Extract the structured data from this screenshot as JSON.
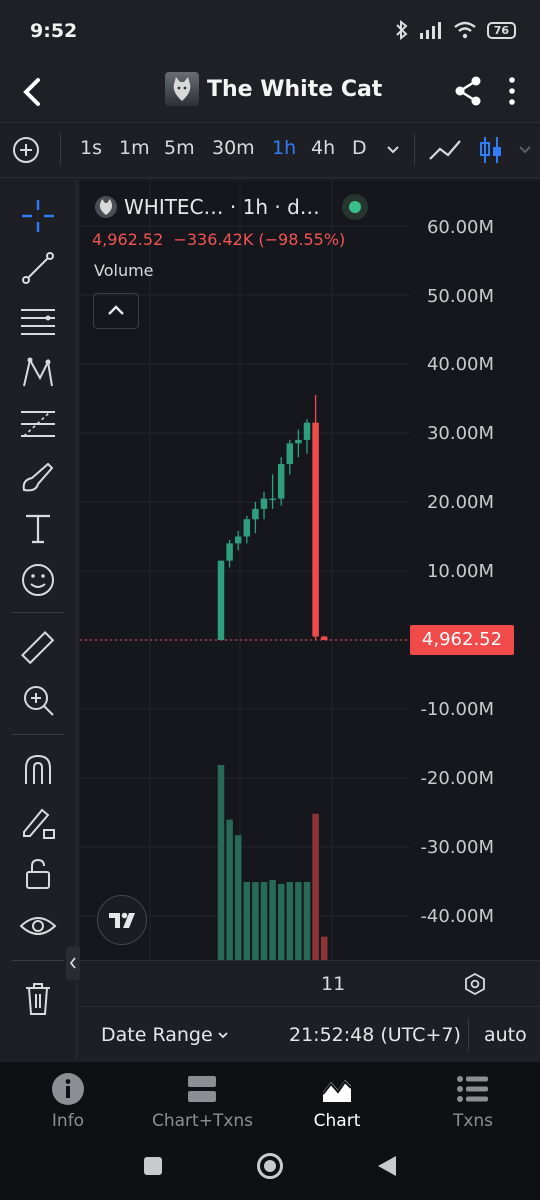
{
  "status_bar": {
    "time": "9:52",
    "battery": "76"
  },
  "header": {
    "title": "The White Cat"
  },
  "intervals": [
    "1s",
    "1m",
    "5m",
    "30m",
    "1h",
    "4h",
    "D"
  ],
  "active_interval": "1h",
  "legend": {
    "symbol": "WHITEC… · 1h · d…",
    "price": "4,962.52",
    "change": "−336.42K (−98.55%)",
    "volume_label": "Volume"
  },
  "price_axis": {
    "labels": [
      "60.00M",
      "50.00M",
      "40.00M",
      "30.00M",
      "20.00M",
      "10.00M",
      "-10.00M",
      "-20.00M",
      "-30.00M",
      "-40.00M"
    ],
    "current_price_tag": "4,962.52"
  },
  "time_axis": {
    "label": "11"
  },
  "bottom_bar": {
    "date_range": "Date Range",
    "clock": "21:52:48 (UTC+7)",
    "scale": "auto"
  },
  "tabs": [
    {
      "label": "Info",
      "icon": "info-icon"
    },
    {
      "label": "Chart+Txns",
      "icon": "split-view-icon"
    },
    {
      "label": "Chart",
      "icon": "area-chart-icon",
      "active": true
    },
    {
      "label": "Txns",
      "icon": "list-icon"
    }
  ],
  "colors": {
    "up": "#2f9e7d",
    "down": "#ef4b4c",
    "accent": "#2f7cf6",
    "background": "#16171c"
  },
  "chart_data": {
    "type": "candlestick",
    "interval": "1h",
    "ylim": [
      -45000000,
      62000000
    ],
    "candles": [
      {
        "o": 0,
        "h": 11500000,
        "l": 0,
        "c": 11500000
      },
      {
        "o": 11500000,
        "h": 14500000,
        "l": 10500000,
        "c": 14000000
      },
      {
        "o": 14000000,
        "h": 15800000,
        "l": 13000000,
        "c": 15000000
      },
      {
        "o": 15000000,
        "h": 18000000,
        "l": 14000000,
        "c": 17500000
      },
      {
        "o": 17500000,
        "h": 20000000,
        "l": 15500000,
        "c": 19000000
      },
      {
        "o": 19000000,
        "h": 21500000,
        "l": 17500000,
        "c": 20500000
      },
      {
        "o": 20500000,
        "h": 24000000,
        "l": 19000000,
        "c": 20500000
      },
      {
        "o": 20500000,
        "h": 26500000,
        "l": 19500000,
        "c": 25500000
      },
      {
        "o": 25500000,
        "h": 29000000,
        "l": 24000000,
        "c": 28500000
      },
      {
        "o": 28500000,
        "h": 30500000,
        "l": 26500000,
        "c": 29000000
      },
      {
        "o": 29000000,
        "h": 32000000,
        "l": 27000000,
        "c": 31500000
      },
      {
        "o": 31500000,
        "h": 35500000,
        "l": 0,
        "c": 500000
      },
      {
        "o": 500000,
        "h": 600000,
        "l": 0,
        "c": 4962.52
      }
    ],
    "volume_relative": [
      1.0,
      0.72,
      0.64,
      0.4,
      0.4,
      0.4,
      0.41,
      0.39,
      0.4,
      0.4,
      0.4,
      0.75,
      0.12
    ]
  }
}
